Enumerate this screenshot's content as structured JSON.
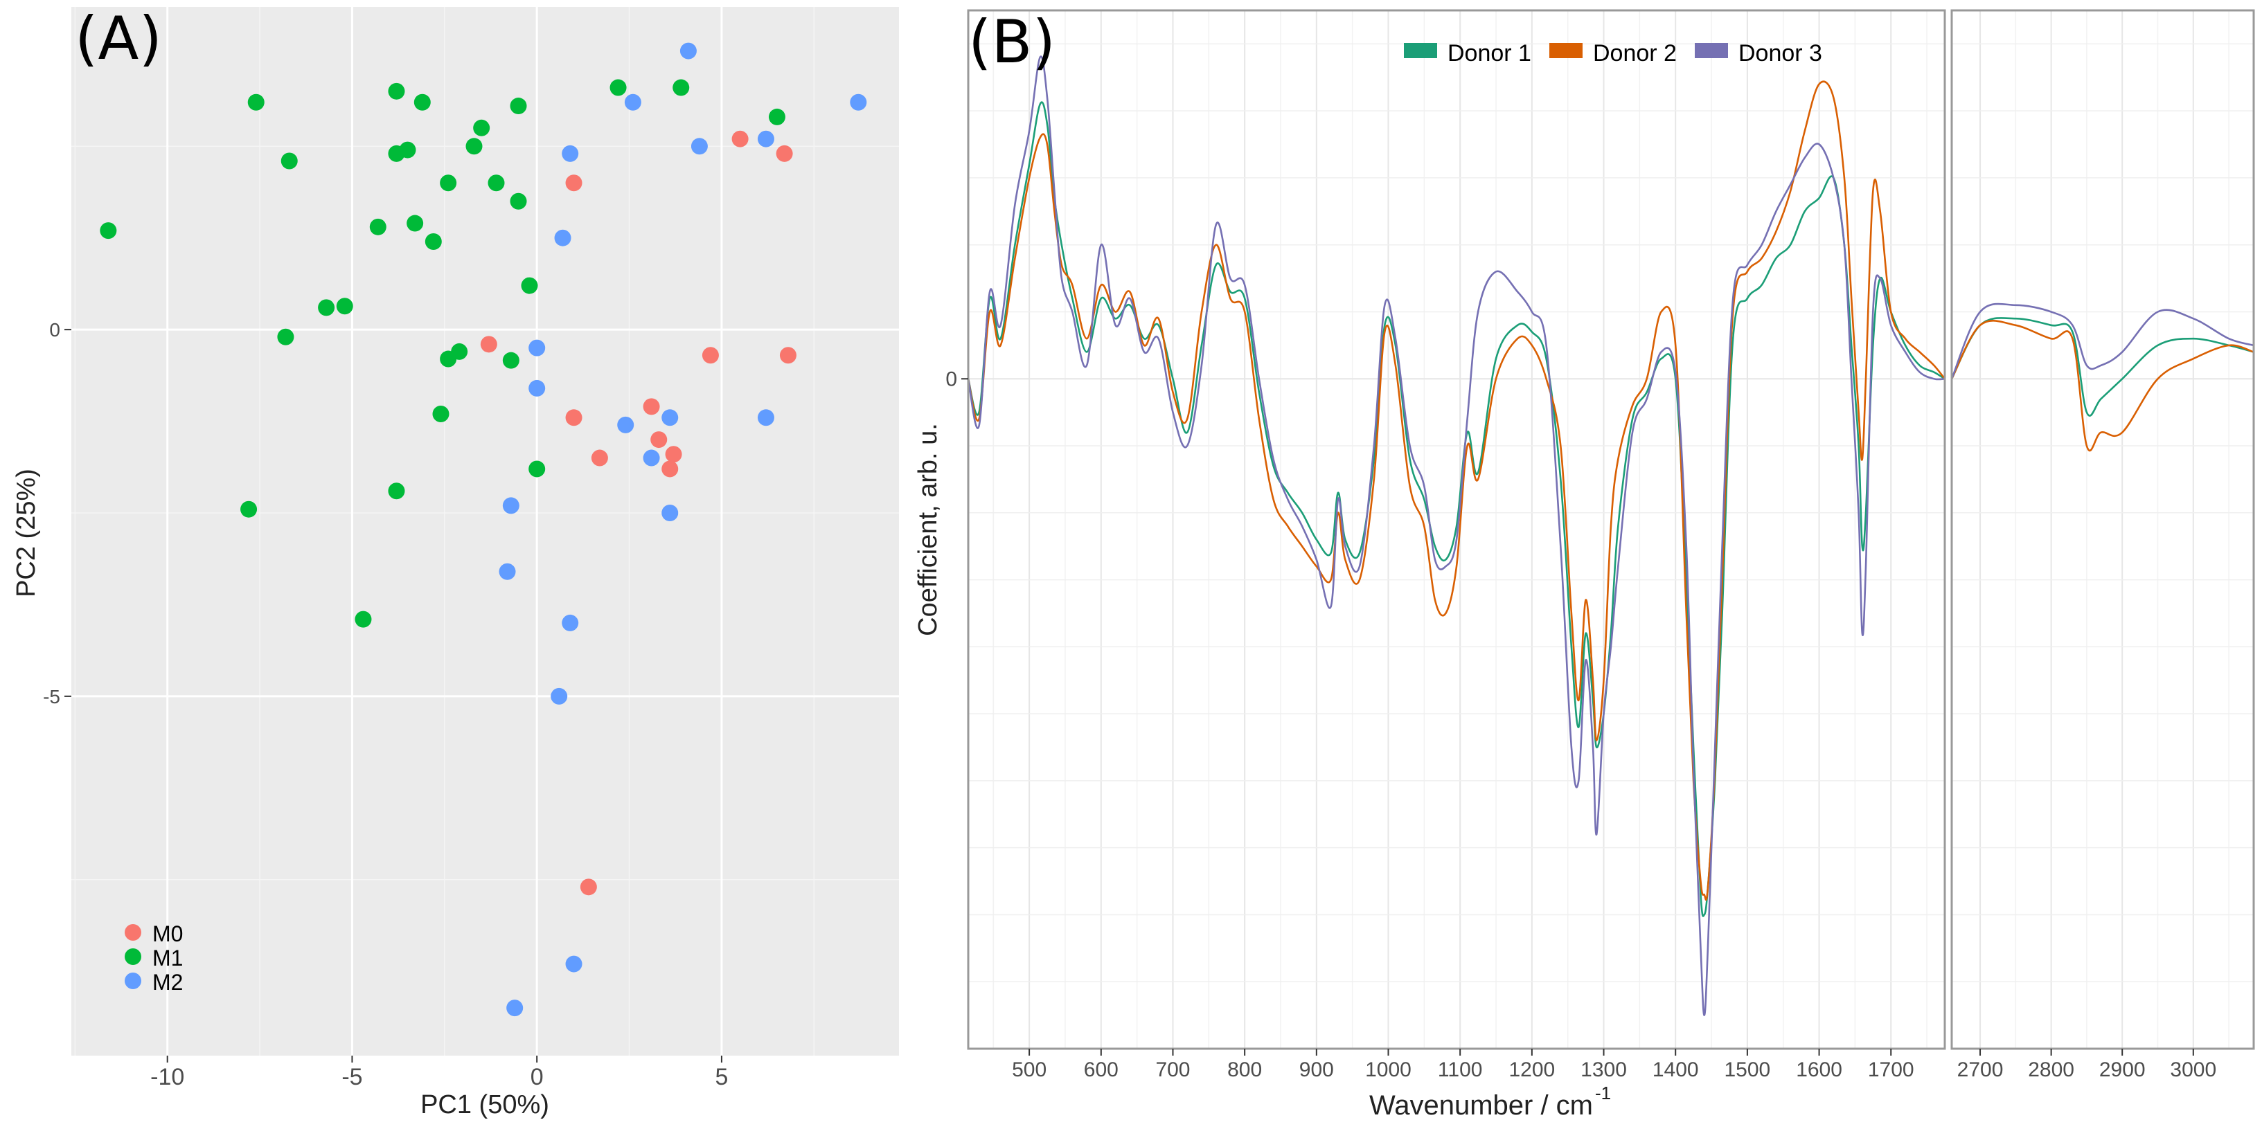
{
  "chart_data": [
    {
      "type": "scatter",
      "panel_label": "(A)",
      "xlabel": "PC1 (50%)",
      "ylabel": "PC2 (25%)",
      "xlim": [
        -12.6,
        9.8
      ],
      "ylim": [
        -9.9,
        4.4
      ],
      "x_ticks": [
        -10,
        -5,
        0,
        5
      ],
      "x_tick_labels": [
        "-10",
        "-5",
        "0",
        "5"
      ],
      "y_ticks": [
        -5,
        0
      ],
      "y_tick_labels": [
        "-5",
        "0"
      ],
      "legend_position": "bottom-left",
      "colors": {
        "M0": "#f8766d",
        "M1": "#00ba38",
        "M2": "#619cff"
      },
      "series": [
        {
          "name": "M0",
          "points": [
            [
              1.0,
              2.0
            ],
            [
              5.5,
              2.6
            ],
            [
              6.7,
              2.4
            ],
            [
              4.7,
              -0.35
            ],
            [
              6.8,
              -0.35
            ],
            [
              -1.3,
              -0.2
            ],
            [
              1.0,
              -1.2
            ],
            [
              3.1,
              -1.05
            ],
            [
              3.3,
              -1.5
            ],
            [
              3.7,
              -1.7
            ],
            [
              3.6,
              -1.9
            ],
            [
              1.7,
              -1.75
            ],
            [
              1.4,
              -7.6
            ]
          ]
        },
        {
          "name": "M1",
          "points": [
            [
              -11.6,
              1.35
            ],
            [
              -7.6,
              3.1
            ],
            [
              -6.7,
              2.3
            ],
            [
              -5.7,
              0.3
            ],
            [
              -5.2,
              0.32
            ],
            [
              -6.8,
              -0.1
            ],
            [
              -3.8,
              3.25
            ],
            [
              -3.1,
              3.1
            ],
            [
              -3.8,
              2.4
            ],
            [
              -3.5,
              2.45
            ],
            [
              -4.3,
              1.4
            ],
            [
              -3.3,
              1.45
            ],
            [
              -2.8,
              1.2
            ],
            [
              -2.4,
              2.0
            ],
            [
              -1.7,
              2.5
            ],
            [
              -1.5,
              2.75
            ],
            [
              -1.1,
              2.0
            ],
            [
              -0.5,
              3.05
            ],
            [
              -0.5,
              1.75
            ],
            [
              -0.2,
              0.6
            ],
            [
              -0.7,
              -0.42
            ],
            [
              -2.1,
              -0.3
            ],
            [
              -2.4,
              -0.4
            ],
            [
              -2.6,
              -1.15
            ],
            [
              0.0,
              -1.9
            ],
            [
              -3.8,
              -2.2
            ],
            [
              -7.8,
              -2.45
            ],
            [
              -4.7,
              -3.95
            ],
            [
              2.2,
              3.3
            ],
            [
              3.9,
              3.3
            ],
            [
              6.5,
              2.9
            ]
          ]
        },
        {
          "name": "M2",
          "points": [
            [
              4.1,
              3.8
            ],
            [
              2.6,
              3.1
            ],
            [
              8.7,
              3.1
            ],
            [
              6.2,
              2.6
            ],
            [
              4.4,
              2.5
            ],
            [
              0.9,
              2.4
            ],
            [
              0.7,
              1.25
            ],
            [
              0.0,
              -0.25
            ],
            [
              0.0,
              -0.8
            ],
            [
              2.4,
              -1.3
            ],
            [
              3.6,
              -1.2
            ],
            [
              6.2,
              -1.2
            ],
            [
              3.1,
              -1.75
            ],
            [
              3.6,
              -2.5
            ],
            [
              -0.7,
              -2.4
            ],
            [
              -0.8,
              -3.3
            ],
            [
              0.9,
              -4.0
            ],
            [
              0.6,
              -5.0
            ],
            [
              1.0,
              -8.65
            ],
            [
              -0.6,
              -9.25
            ]
          ]
        }
      ]
    },
    {
      "type": "line",
      "panel_label": "(B)",
      "xlabel": "Wavenumber / cm",
      "xlabel_superscript": "-1",
      "ylabel": "Coefficient, arb. u.",
      "legend_position": "top",
      "y_ticks": [
        0
      ],
      "y_tick_labels": [
        "0"
      ],
      "ylim": [
        -1.0,
        0.55
      ],
      "segments": [
        {
          "xlim": [
            415,
            1775
          ],
          "ticks": [
            500,
            600,
            700,
            800,
            900,
            1000,
            1100,
            1200,
            1300,
            1400,
            1500,
            1600,
            1700
          ],
          "tick_labels": [
            "500",
            "600",
            "700",
            "800",
            "900",
            "1000",
            "1100",
            "1200",
            "1300",
            "1400",
            "1500",
            "1600",
            "1700"
          ]
        },
        {
          "xlim": [
            2660,
            3085
          ],
          "ticks": [
            2700,
            2800,
            2900,
            3000
          ],
          "tick_labels": [
            "2700",
            "2800",
            "2900",
            "3000"
          ]
        }
      ],
      "series": [
        {
          "name": "Donor 1",
          "color": "#1b9e77",
          "x": [
            415,
            430,
            445,
            460,
            480,
            500,
            515,
            525,
            535,
            545,
            560,
            580,
            600,
            620,
            640,
            660,
            680,
            700,
            720,
            740,
            760,
            780,
            800,
            820,
            840,
            860,
            880,
            900,
            920,
            930,
            940,
            960,
            980,
            995,
            1010,
            1030,
            1050,
            1065,
            1080,
            1095,
            1110,
            1125,
            1150,
            1180,
            1200,
            1220,
            1240,
            1255,
            1265,
            1275,
            1285,
            1290,
            1300,
            1310,
            1320,
            1340,
            1360,
            1380,
            1400,
            1415,
            1425,
            1435,
            1440,
            1445,
            1455,
            1465,
            1480,
            1500,
            1520,
            1540,
            1560,
            1580,
            1600,
            1620,
            1635,
            1645,
            1655,
            1660,
            1665,
            1675,
            1685,
            1700,
            1720,
            1740,
            1760,
            1775,
            2660,
            2700,
            2750,
            2800,
            2830,
            2850,
            2870,
            2900,
            2950,
            3000,
            3050,
            3085
          ],
          "y": [
            0.0,
            -0.05,
            0.12,
            0.06,
            0.2,
            0.32,
            0.41,
            0.38,
            0.27,
            0.2,
            0.12,
            0.04,
            0.12,
            0.09,
            0.11,
            0.06,
            0.08,
            0.0,
            -0.08,
            0.05,
            0.17,
            0.13,
            0.12,
            -0.02,
            -0.13,
            -0.17,
            -0.2,
            -0.24,
            -0.26,
            -0.17,
            -0.24,
            -0.26,
            -0.12,
            0.08,
            0.05,
            -0.12,
            -0.18,
            -0.25,
            -0.27,
            -0.22,
            -0.08,
            -0.14,
            0.03,
            0.08,
            0.07,
            0.03,
            -0.15,
            -0.4,
            -0.52,
            -0.38,
            -0.48,
            -0.55,
            -0.5,
            -0.38,
            -0.22,
            -0.06,
            -0.02,
            0.03,
            0.0,
            -0.3,
            -0.55,
            -0.77,
            -0.8,
            -0.76,
            -0.6,
            -0.35,
            0.06,
            0.12,
            0.14,
            0.18,
            0.2,
            0.25,
            0.27,
            0.3,
            0.2,
            0.05,
            -0.1,
            -0.25,
            -0.2,
            0.05,
            0.15,
            0.1,
            0.05,
            0.02,
            0.01,
            0.0,
            0.0,
            0.08,
            0.09,
            0.08,
            0.07,
            -0.05,
            -0.03,
            0.0,
            0.05,
            0.06,
            0.05,
            0.04
          ]
        },
        {
          "name": "Donor 2",
          "color": "#d95f02",
          "x": [
            415,
            430,
            445,
            460,
            480,
            500,
            515,
            525,
            535,
            545,
            560,
            580,
            600,
            620,
            640,
            660,
            680,
            700,
            720,
            740,
            760,
            780,
            800,
            820,
            840,
            860,
            880,
            900,
            920,
            930,
            940,
            960,
            980,
            995,
            1010,
            1030,
            1050,
            1065,
            1080,
            1095,
            1110,
            1125,
            1150,
            1180,
            1200,
            1220,
            1240,
            1255,
            1265,
            1275,
            1285,
            1290,
            1300,
            1310,
            1320,
            1340,
            1360,
            1380,
            1400,
            1415,
            1425,
            1435,
            1440,
            1445,
            1455,
            1465,
            1480,
            1500,
            1520,
            1540,
            1560,
            1580,
            1600,
            1620,
            1635,
            1645,
            1655,
            1660,
            1665,
            1675,
            1685,
            1700,
            1720,
            1740,
            1760,
            1775,
            2660,
            2700,
            2750,
            2800,
            2830,
            2850,
            2870,
            2900,
            2950,
            3000,
            3050,
            3085
          ],
          "y": [
            0.0,
            -0.06,
            0.1,
            0.05,
            0.18,
            0.3,
            0.36,
            0.35,
            0.25,
            0.17,
            0.14,
            0.06,
            0.14,
            0.1,
            0.13,
            0.05,
            0.09,
            -0.02,
            -0.06,
            0.1,
            0.2,
            0.12,
            0.1,
            -0.06,
            -0.18,
            -0.22,
            -0.25,
            -0.28,
            -0.3,
            -0.2,
            -0.27,
            -0.3,
            -0.15,
            0.07,
            0.02,
            -0.16,
            -0.22,
            -0.33,
            -0.35,
            -0.28,
            -0.1,
            -0.15,
            0.0,
            0.06,
            0.05,
            0.0,
            -0.1,
            -0.35,
            -0.48,
            -0.33,
            -0.45,
            -0.54,
            -0.45,
            -0.22,
            -0.12,
            -0.04,
            0.0,
            0.1,
            0.05,
            -0.35,
            -0.6,
            -0.75,
            -0.77,
            -0.76,
            -0.58,
            -0.3,
            0.1,
            0.16,
            0.18,
            0.22,
            0.28,
            0.37,
            0.44,
            0.42,
            0.3,
            0.12,
            -0.05,
            -0.12,
            0.0,
            0.28,
            0.25,
            0.1,
            0.06,
            0.04,
            0.02,
            0.0,
            0.0,
            0.08,
            0.08,
            0.06,
            0.06,
            -0.1,
            -0.08,
            -0.08,
            0.0,
            0.03,
            0.05,
            0.04
          ]
        },
        {
          "name": "Donor 3",
          "color": "#7570b3",
          "x": [
            415,
            430,
            445,
            460,
            480,
            500,
            515,
            525,
            535,
            545,
            560,
            580,
            600,
            620,
            640,
            660,
            680,
            700,
            720,
            740,
            760,
            780,
            800,
            820,
            840,
            860,
            880,
            900,
            920,
            930,
            940,
            960,
            980,
            995,
            1010,
            1030,
            1050,
            1065,
            1080,
            1095,
            1110,
            1125,
            1150,
            1180,
            1200,
            1220,
            1240,
            1255,
            1265,
            1275,
            1285,
            1290,
            1300,
            1310,
            1320,
            1340,
            1360,
            1380,
            1400,
            1415,
            1425,
            1435,
            1440,
            1445,
            1455,
            1465,
            1480,
            1500,
            1520,
            1540,
            1560,
            1580,
            1600,
            1620,
            1635,
            1645,
            1655,
            1660,
            1665,
            1675,
            1685,
            1700,
            1720,
            1740,
            1760,
            1775,
            2660,
            2700,
            2750,
            2800,
            2830,
            2850,
            2870,
            2900,
            2950,
            3000,
            3050,
            3085
          ],
          "y": [
            0.0,
            -0.07,
            0.13,
            0.08,
            0.26,
            0.37,
            0.48,
            0.42,
            0.28,
            0.15,
            0.1,
            0.02,
            0.2,
            0.08,
            0.12,
            0.04,
            0.06,
            -0.05,
            -0.1,
            0.02,
            0.23,
            0.15,
            0.14,
            0.0,
            -0.12,
            -0.18,
            -0.22,
            -0.27,
            -0.34,
            -0.18,
            -0.25,
            -0.28,
            -0.1,
            0.11,
            0.06,
            -0.1,
            -0.16,
            -0.27,
            -0.28,
            -0.24,
            -0.06,
            0.1,
            0.16,
            0.13,
            0.1,
            0.05,
            -0.25,
            -0.55,
            -0.6,
            -0.42,
            -0.55,
            -0.68,
            -0.5,
            -0.4,
            -0.28,
            -0.08,
            -0.03,
            0.04,
            0.01,
            -0.25,
            -0.58,
            -0.85,
            -0.95,
            -0.85,
            -0.55,
            -0.25,
            0.12,
            0.17,
            0.2,
            0.25,
            0.29,
            0.33,
            0.35,
            0.3,
            0.2,
            0.0,
            -0.2,
            -0.38,
            -0.28,
            0.1,
            0.15,
            0.08,
            0.04,
            0.01,
            0.0,
            0.0,
            0.0,
            0.1,
            0.11,
            0.1,
            0.08,
            0.02,
            0.02,
            0.04,
            0.1,
            0.09,
            0.06,
            0.05
          ]
        }
      ]
    }
  ]
}
